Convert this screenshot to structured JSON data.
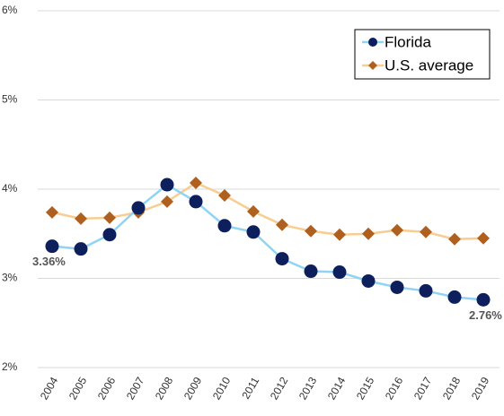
{
  "chart_data": {
    "type": "line",
    "categories": [
      "2004",
      "2005",
      "2006",
      "2007",
      "2008",
      "2009",
      "2010",
      "2011",
      "2012",
      "2013",
      "2014",
      "2015",
      "2016",
      "2017",
      "2018",
      "2019"
    ],
    "series": [
      {
        "name": "Florida",
        "color": "#8fd3f5",
        "marker_color": "#0d1f5c",
        "marker": "circle",
        "values": [
          3.36,
          3.33,
          3.49,
          3.79,
          4.05,
          3.86,
          3.59,
          3.52,
          3.22,
          3.08,
          3.07,
          2.97,
          2.9,
          2.86,
          2.79,
          2.76
        ],
        "value_labels": [
          "3.36%",
          null,
          null,
          null,
          null,
          null,
          null,
          null,
          null,
          null,
          null,
          null,
          null,
          null,
          null,
          "2.76%"
        ]
      },
      {
        "name": "U.S. average",
        "color": "#f9cd92",
        "marker_color": "#b0601e",
        "marker": "diamond",
        "values": [
          3.74,
          3.67,
          3.68,
          3.74,
          3.86,
          4.07,
          3.93,
          3.75,
          3.6,
          3.53,
          3.49,
          3.5,
          3.54,
          3.52,
          3.44,
          3.45
        ]
      }
    ],
    "ylim": [
      2,
      6
    ],
    "yticks": [
      {
        "value": 2,
        "label": "2%"
      },
      {
        "value": 3,
        "label": "3%"
      },
      {
        "value": 4,
        "label": "4%"
      },
      {
        "value": 5,
        "label": "5%"
      },
      {
        "value": 6,
        "label": "6%"
      }
    ],
    "grid": true,
    "legend": "upper right"
  }
}
